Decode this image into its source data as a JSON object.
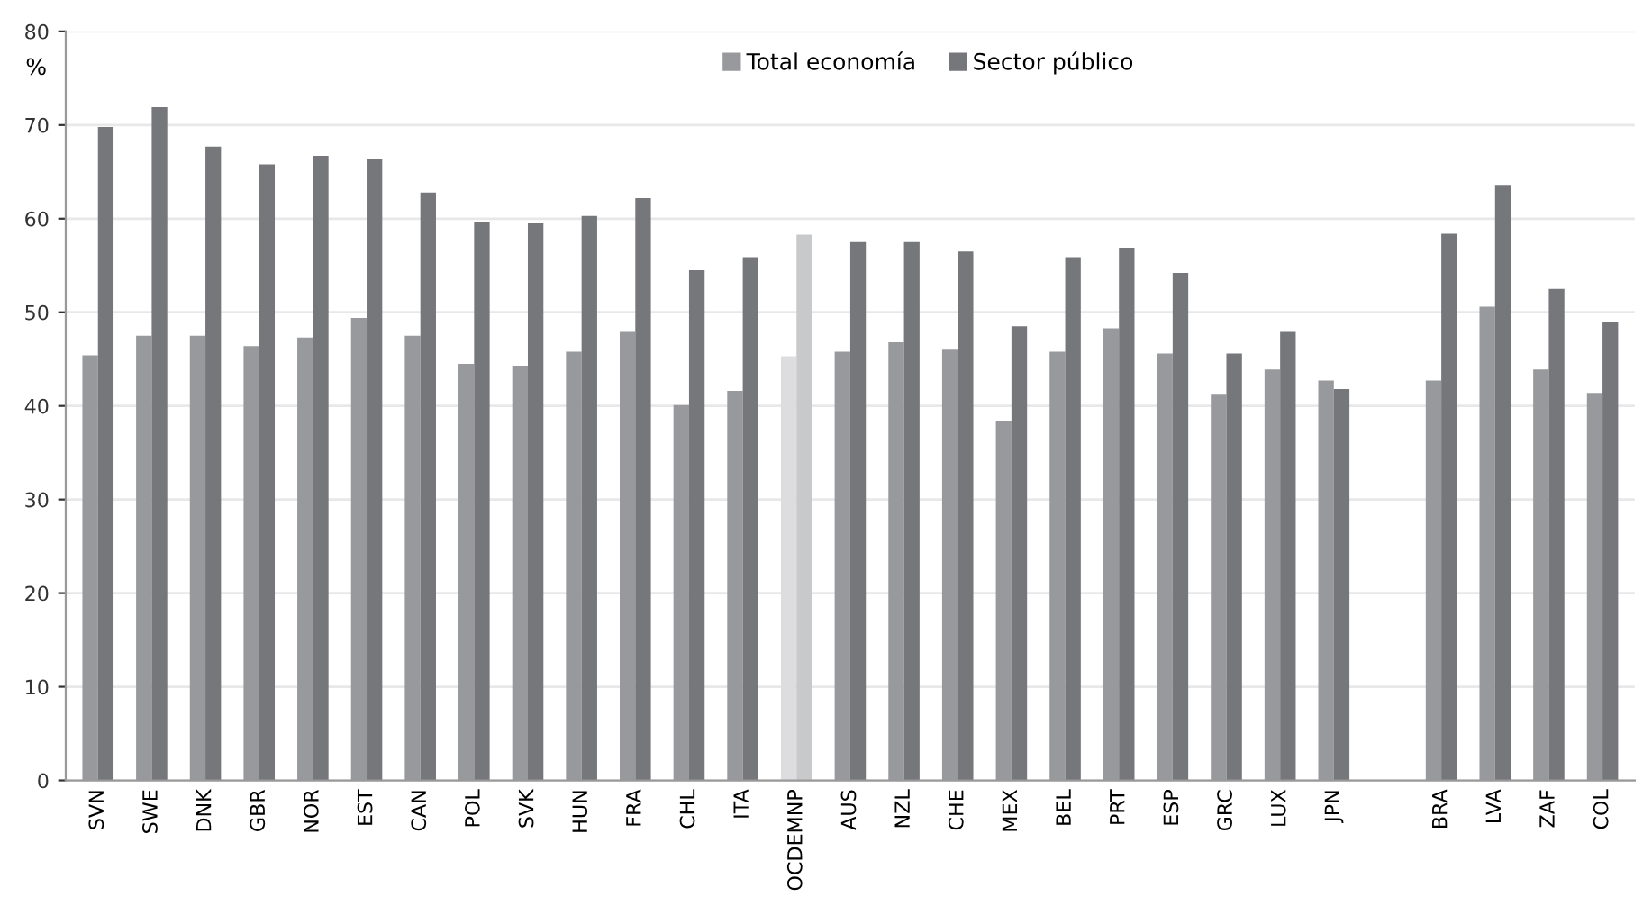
{
  "chart_data": {
    "type": "bar",
    "ylabel": "%",
    "categories": [
      "SVN",
      "SWE",
      "DNK",
      "GBR",
      "NOR",
      "EST",
      "CAN",
      "POL",
      "SVK",
      "HUN",
      "FRA",
      "CHL",
      "ITA",
      "OCDEMNP",
      "AUS",
      "NZL",
      "CHE",
      "MEX",
      "BEL",
      "PRT",
      "ESP",
      "GRC",
      "LUX",
      "JPN",
      null,
      "BRA",
      "LVA",
      "ZAF",
      "COL"
    ],
    "series": [
      {
        "name": "Total economía",
        "color": "#98999c",
        "colors": [
          "#98999c",
          "#98999c",
          "#98999c",
          "#98999c",
          "#98999c",
          "#98999c",
          "#98999c",
          "#98999c",
          "#98999c",
          "#98999c",
          "#98999c",
          "#98999c",
          "#98999c",
          "#dddddf",
          "#98999c",
          "#98999c",
          "#98999c",
          "#98999c",
          "#98999c",
          "#98999c",
          "#98999c",
          "#98999c",
          "#98999c",
          "#98999c",
          "#98999c",
          "#98999c",
          "#98999c",
          "#98999c",
          "#98999c"
        ],
        "values": [
          45.4,
          47.5,
          47.5,
          46.4,
          47.3,
          49.4,
          47.5,
          44.5,
          44.3,
          45.8,
          47.9,
          40.1,
          41.6,
          45.3,
          45.8,
          46.8,
          46.0,
          38.4,
          45.8,
          48.3,
          45.6,
          41.2,
          43.9,
          42.7,
          null,
          42.7,
          50.6,
          43.9,
          41.4
        ]
      },
      {
        "name": "Sector público",
        "color": "#76777b",
        "colors": [
          "#76777b",
          "#76777b",
          "#76777b",
          "#76777b",
          "#76777b",
          "#76777b",
          "#76777b",
          "#76777b",
          "#76777b",
          "#76777b",
          "#76777b",
          "#76777b",
          "#76777b",
          "#c8c9cb",
          "#76777b",
          "#76777b",
          "#76777b",
          "#76777b",
          "#76777b",
          "#76777b",
          "#76777b",
          "#76777b",
          "#76777b",
          "#76777b",
          "#76777b",
          "#76777b",
          "#76777b",
          "#76777b",
          "#76777b"
        ],
        "values": [
          69.8,
          71.9,
          67.7,
          65.8,
          66.7,
          66.4,
          62.8,
          59.7,
          59.5,
          60.3,
          62.2,
          54.5,
          55.9,
          58.3,
          57.5,
          57.5,
          56.5,
          48.5,
          55.9,
          56.9,
          54.2,
          45.6,
          47.9,
          41.8,
          null,
          58.4,
          63.6,
          52.5,
          49.0
        ]
      }
    ],
    "ylim": [
      0,
      80
    ],
    "yticks": [
      0,
      10,
      20,
      30,
      40,
      50,
      60,
      70,
      80
    ],
    "grid": "y",
    "legend": "top"
  }
}
